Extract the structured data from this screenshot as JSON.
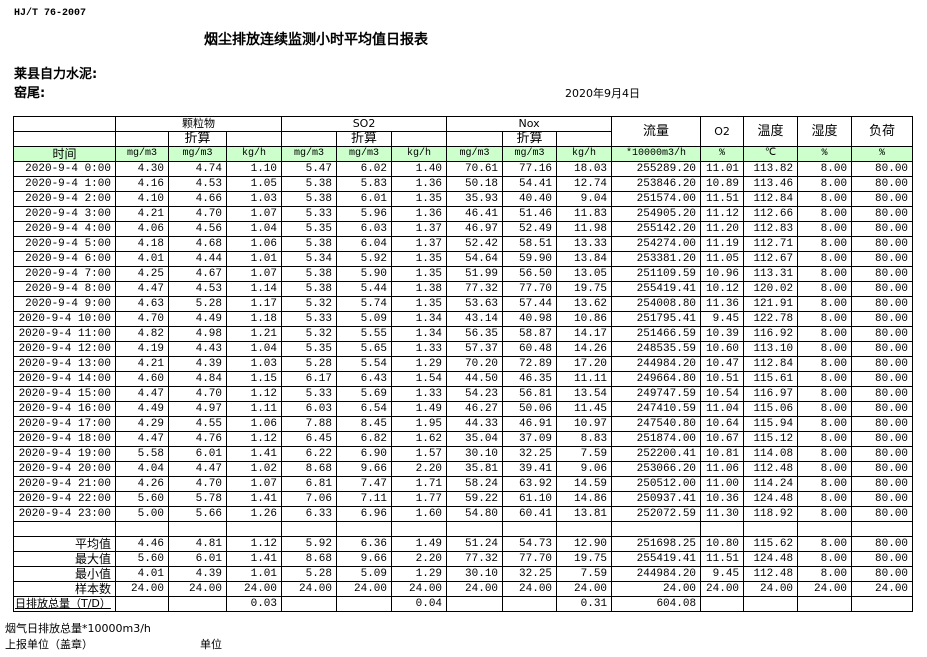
{
  "header": {
    "standard": "HJ/T  76-2007",
    "title": "烟尘排放连续监测小时平均值日报表",
    "company": "莱县自力水泥:",
    "kiln": "窑尾:",
    "date": "2020年9月4日"
  },
  "table": {
    "groups": {
      "particulate": "颗粒物",
      "so2": "SO2",
      "nox": "Nox",
      "converted": "折算",
      "flow": "流量",
      "o2": "O2",
      "temp": "温度",
      "humidity": "湿度",
      "load": "负荷"
    },
    "units": [
      "时间",
      "mg/m3",
      "mg/m3",
      "kg/h",
      "mg/m3",
      "mg/m3",
      "kg/h",
      "mg/m3",
      "mg/m3",
      "kg/h",
      "*10000m3/h",
      "%",
      "℃",
      "%",
      "%"
    ],
    "rows": [
      [
        "2020-9-4 0:00",
        "4.30",
        "4.74",
        "1.10",
        "5.47",
        "6.02",
        "1.40",
        "70.61",
        "77.16",
        "18.03",
        "255289.20",
        "11.01",
        "113.82",
        "8.00",
        "80.00"
      ],
      [
        "2020-9-4 1:00",
        "4.16",
        "4.53",
        "1.05",
        "5.38",
        "5.83",
        "1.36",
        "50.18",
        "54.41",
        "12.74",
        "253846.20",
        "10.89",
        "113.46",
        "8.00",
        "80.00"
      ],
      [
        "2020-9-4 2:00",
        "4.10",
        "4.66",
        "1.03",
        "5.38",
        "6.01",
        "1.35",
        "35.93",
        "40.40",
        "9.04",
        "251574.00",
        "11.51",
        "112.84",
        "8.00",
        "80.00"
      ],
      [
        "2020-9-4 3:00",
        "4.21",
        "4.70",
        "1.07",
        "5.33",
        "5.96",
        "1.36",
        "46.41",
        "51.46",
        "11.83",
        "254905.20",
        "11.12",
        "112.66",
        "8.00",
        "80.00"
      ],
      [
        "2020-9-4 4:00",
        "4.06",
        "4.56",
        "1.04",
        "5.35",
        "6.03",
        "1.37",
        "46.97",
        "52.49",
        "11.98",
        "255142.20",
        "11.20",
        "112.83",
        "8.00",
        "80.00"
      ],
      [
        "2020-9-4 5:00",
        "4.18",
        "4.68",
        "1.06",
        "5.38",
        "6.04",
        "1.37",
        "52.42",
        "58.51",
        "13.33",
        "254274.00",
        "11.19",
        "112.71",
        "8.00",
        "80.00"
      ],
      [
        "2020-9-4 6:00",
        "4.01",
        "4.44",
        "1.01",
        "5.34",
        "5.92",
        "1.35",
        "54.64",
        "59.90",
        "13.84",
        "253381.20",
        "11.05",
        "112.67",
        "8.00",
        "80.00"
      ],
      [
        "2020-9-4 7:00",
        "4.25",
        "4.67",
        "1.07",
        "5.38",
        "5.90",
        "1.35",
        "51.99",
        "56.50",
        "13.05",
        "251109.59",
        "10.96",
        "113.31",
        "8.00",
        "80.00"
      ],
      [
        "2020-9-4 8:00",
        "4.47",
        "4.53",
        "1.14",
        "5.38",
        "5.44",
        "1.38",
        "77.32",
        "77.70",
        "19.75",
        "255419.41",
        "10.12",
        "120.02",
        "8.00",
        "80.00"
      ],
      [
        "2020-9-4 9:00",
        "4.63",
        "5.28",
        "1.17",
        "5.32",
        "5.74",
        "1.35",
        "53.63",
        "57.44",
        "13.62",
        "254008.80",
        "11.36",
        "121.91",
        "8.00",
        "80.00"
      ],
      [
        "2020-9-4 10:00",
        "4.70",
        "4.49",
        "1.18",
        "5.33",
        "5.09",
        "1.34",
        "43.14",
        "40.98",
        "10.86",
        "251795.41",
        "9.45",
        "122.78",
        "8.00",
        "80.00"
      ],
      [
        "2020-9-4 11:00",
        "4.82",
        "4.98",
        "1.21",
        "5.32",
        "5.55",
        "1.34",
        "56.35",
        "58.87",
        "14.17",
        "251466.59",
        "10.39",
        "116.92",
        "8.00",
        "80.00"
      ],
      [
        "2020-9-4 12:00",
        "4.19",
        "4.43",
        "1.04",
        "5.35",
        "5.65",
        "1.33",
        "57.37",
        "60.48",
        "14.26",
        "248535.59",
        "10.60",
        "113.10",
        "8.00",
        "80.00"
      ],
      [
        "2020-9-4 13:00",
        "4.21",
        "4.39",
        "1.03",
        "5.28",
        "5.54",
        "1.29",
        "70.20",
        "72.89",
        "17.20",
        "244984.20",
        "10.47",
        "112.84",
        "8.00",
        "80.00"
      ],
      [
        "2020-9-4 14:00",
        "4.60",
        "4.84",
        "1.15",
        "6.17",
        "6.43",
        "1.54",
        "44.50",
        "46.35",
        "11.11",
        "249664.80",
        "10.51",
        "115.61",
        "8.00",
        "80.00"
      ],
      [
        "2020-9-4 15:00",
        "4.47",
        "4.70",
        "1.12",
        "5.33",
        "5.69",
        "1.33",
        "54.23",
        "56.81",
        "13.54",
        "249747.59",
        "10.54",
        "116.97",
        "8.00",
        "80.00"
      ],
      [
        "2020-9-4 16:00",
        "4.49",
        "4.97",
        "1.11",
        "6.03",
        "6.54",
        "1.49",
        "46.27",
        "50.06",
        "11.45",
        "247410.59",
        "11.04",
        "115.06",
        "8.00",
        "80.00"
      ],
      [
        "2020-9-4 17:00",
        "4.29",
        "4.55",
        "1.06",
        "7.88",
        "8.45",
        "1.95",
        "44.33",
        "46.91",
        "10.97",
        "247540.80",
        "10.64",
        "115.94",
        "8.00",
        "80.00"
      ],
      [
        "2020-9-4 18:00",
        "4.47",
        "4.76",
        "1.12",
        "6.45",
        "6.82",
        "1.62",
        "35.04",
        "37.09",
        "8.83",
        "251874.00",
        "10.67",
        "115.12",
        "8.00",
        "80.00"
      ],
      [
        "2020-9-4 19:00",
        "5.58",
        "6.01",
        "1.41",
        "6.22",
        "6.90",
        "1.57",
        "30.10",
        "32.25",
        "7.59",
        "252200.41",
        "10.81",
        "114.08",
        "8.00",
        "80.00"
      ],
      [
        "2020-9-4 20:00",
        "4.04",
        "4.47",
        "1.02",
        "8.68",
        "9.66",
        "2.20",
        "35.81",
        "39.41",
        "9.06",
        "253066.20",
        "11.06",
        "112.48",
        "8.00",
        "80.00"
      ],
      [
        "2020-9-4 21:00",
        "4.26",
        "4.70",
        "1.07",
        "6.81",
        "7.47",
        "1.71",
        "58.24",
        "63.92",
        "14.59",
        "250512.00",
        "11.00",
        "114.24",
        "8.00",
        "80.00"
      ],
      [
        "2020-9-4 22:00",
        "5.60",
        "5.78",
        "1.41",
        "7.06",
        "7.11",
        "1.77",
        "59.22",
        "61.10",
        "14.86",
        "250937.41",
        "10.36",
        "124.48",
        "8.00",
        "80.00"
      ],
      [
        "2020-9-4 23:00",
        "5.00",
        "5.66",
        "1.26",
        "6.33",
        "6.96",
        "1.60",
        "54.80",
        "60.41",
        "13.81",
        "252072.59",
        "11.30",
        "118.92",
        "8.00",
        "80.00"
      ]
    ],
    "summary": [
      [
        "平均值",
        "4.46",
        "4.81",
        "1.12",
        "5.92",
        "6.36",
        "1.49",
        "51.24",
        "54.73",
        "12.90",
        "251698.25",
        "10.80",
        "115.62",
        "8.00",
        "80.00"
      ],
      [
        "最大值",
        "5.60",
        "6.01",
        "1.41",
        "8.68",
        "9.66",
        "2.20",
        "77.32",
        "77.70",
        "19.75",
        "255419.41",
        "11.51",
        "124.48",
        "8.00",
        "80.00"
      ],
      [
        "最小值",
        "4.01",
        "4.39",
        "1.01",
        "5.28",
        "5.09",
        "1.29",
        "30.10",
        "32.25",
        "7.59",
        "244984.20",
        "9.45",
        "112.48",
        "8.00",
        "80.00"
      ],
      [
        "样本数",
        "24.00",
        "24.00",
        "24.00",
        "24.00",
        "24.00",
        "24.00",
        "24.00",
        "24.00",
        "24.00",
        "24.00",
        "24.00",
        "24.00",
        "24.00",
        "24.00"
      ]
    ],
    "total": [
      "日排放总量（T/D）",
      "",
      "",
      "0.03",
      "",
      "",
      "0.04",
      "",
      "",
      "0.31",
      "604.08",
      "",
      "",
      "",
      ""
    ]
  },
  "footer": {
    "flue_gas_total": "烟气日排放总量*10000m3/h",
    "reporting_unit": "上报单位（盖章）",
    "unit": "单位"
  },
  "colors": {
    "header_green": "#ccffcc"
  }
}
